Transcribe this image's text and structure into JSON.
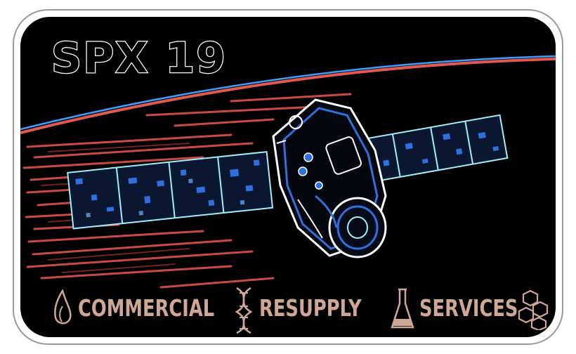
{
  "mission": {
    "title": "SPX 19"
  },
  "footer": {
    "words": [
      "COMMERCIAL",
      "RESUPPLY",
      "SERVICES"
    ],
    "icons": [
      "flame-icon",
      "dna-helix-icon",
      "flask-icon",
      "hexagon-molecule-icon"
    ]
  },
  "colors": {
    "background": "#000000",
    "text": "#cfa796",
    "horizon_red": "#e05a52",
    "horizon_blue": "#3aa0ff",
    "spacecraft_outline": "#ffffff",
    "spacecraft_blue": "#2f6fe0"
  }
}
